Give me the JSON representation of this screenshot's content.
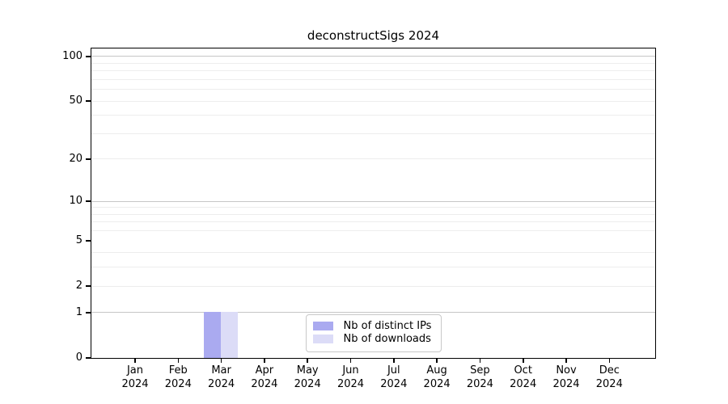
{
  "figure": {
    "background": "#ffffff"
  },
  "chart_data": {
    "type": "bar",
    "title": "deconstructSigs 2024",
    "categories": [
      "Jan",
      "Feb",
      "Mar",
      "Apr",
      "May",
      "Jun",
      "Jul",
      "Aug",
      "Sep",
      "Oct",
      "Nov",
      "Dec"
    ],
    "x_year": "2024",
    "series": [
      {
        "name": "Nb of distinct IPs",
        "color": "#aaaaf0",
        "values": [
          0,
          0,
          1,
          0,
          0,
          0,
          0,
          0,
          0,
          0,
          0,
          0
        ]
      },
      {
        "name": "Nb of downloads",
        "color": "#dcdcf7",
        "values": [
          0,
          0,
          1,
          0,
          0,
          0,
          0,
          0,
          0,
          0,
          0,
          0
        ]
      }
    ],
    "yscale": "log1p",
    "ylim": [
      0,
      113
    ],
    "yticks": [
      0,
      1,
      2,
      5,
      10,
      20,
      50,
      100
    ],
    "major_gridlines": [
      1,
      10,
      100
    ],
    "minor_gridlines": [
      2,
      3,
      4,
      6,
      7,
      8,
      9,
      20,
      30,
      40,
      50,
      60,
      70,
      80,
      90
    ],
    "grid": true,
    "legend_position": "lower center",
    "colors": {
      "axis": "#000000",
      "major_grid": "#c6c6c6",
      "minor_grid": "#ededed",
      "legend_border": "#c8c8c8"
    }
  }
}
